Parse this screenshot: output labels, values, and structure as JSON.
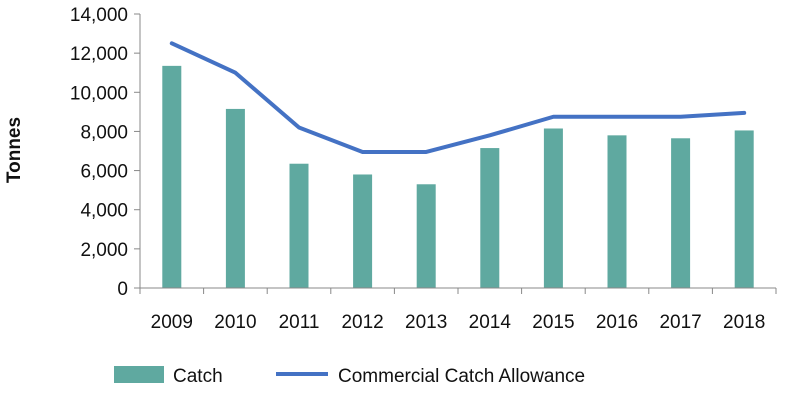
{
  "chart_data": {
    "type": "bar",
    "categories": [
      "2009",
      "2010",
      "2011",
      "2012",
      "2013",
      "2014",
      "2015",
      "2016",
      "2017",
      "2018"
    ],
    "series": [
      {
        "name": "Catch",
        "type": "bar",
        "color": "#5FA9A0",
        "values": [
          11350,
          9150,
          6350,
          5800,
          5300,
          7150,
          8150,
          7800,
          7650,
          8050
        ]
      },
      {
        "name": "Commercial Catch Allowance",
        "type": "line",
        "color": "#4472C4",
        "values": [
          12500,
          11000,
          8200,
          6950,
          6950,
          7800,
          8750,
          8750,
          8750,
          8950
        ]
      }
    ],
    "ylabel": "Tonnes",
    "ylim": [
      0,
      14000
    ],
    "yticks": [
      "0",
      "2,000",
      "4,000",
      "6,000",
      "8,000",
      "10,000",
      "12,000",
      "14,000"
    ],
    "ytick_values": [
      0,
      2000,
      4000,
      6000,
      8000,
      10000,
      12000,
      14000
    ],
    "grid": false,
    "legend_position": "bottom"
  }
}
